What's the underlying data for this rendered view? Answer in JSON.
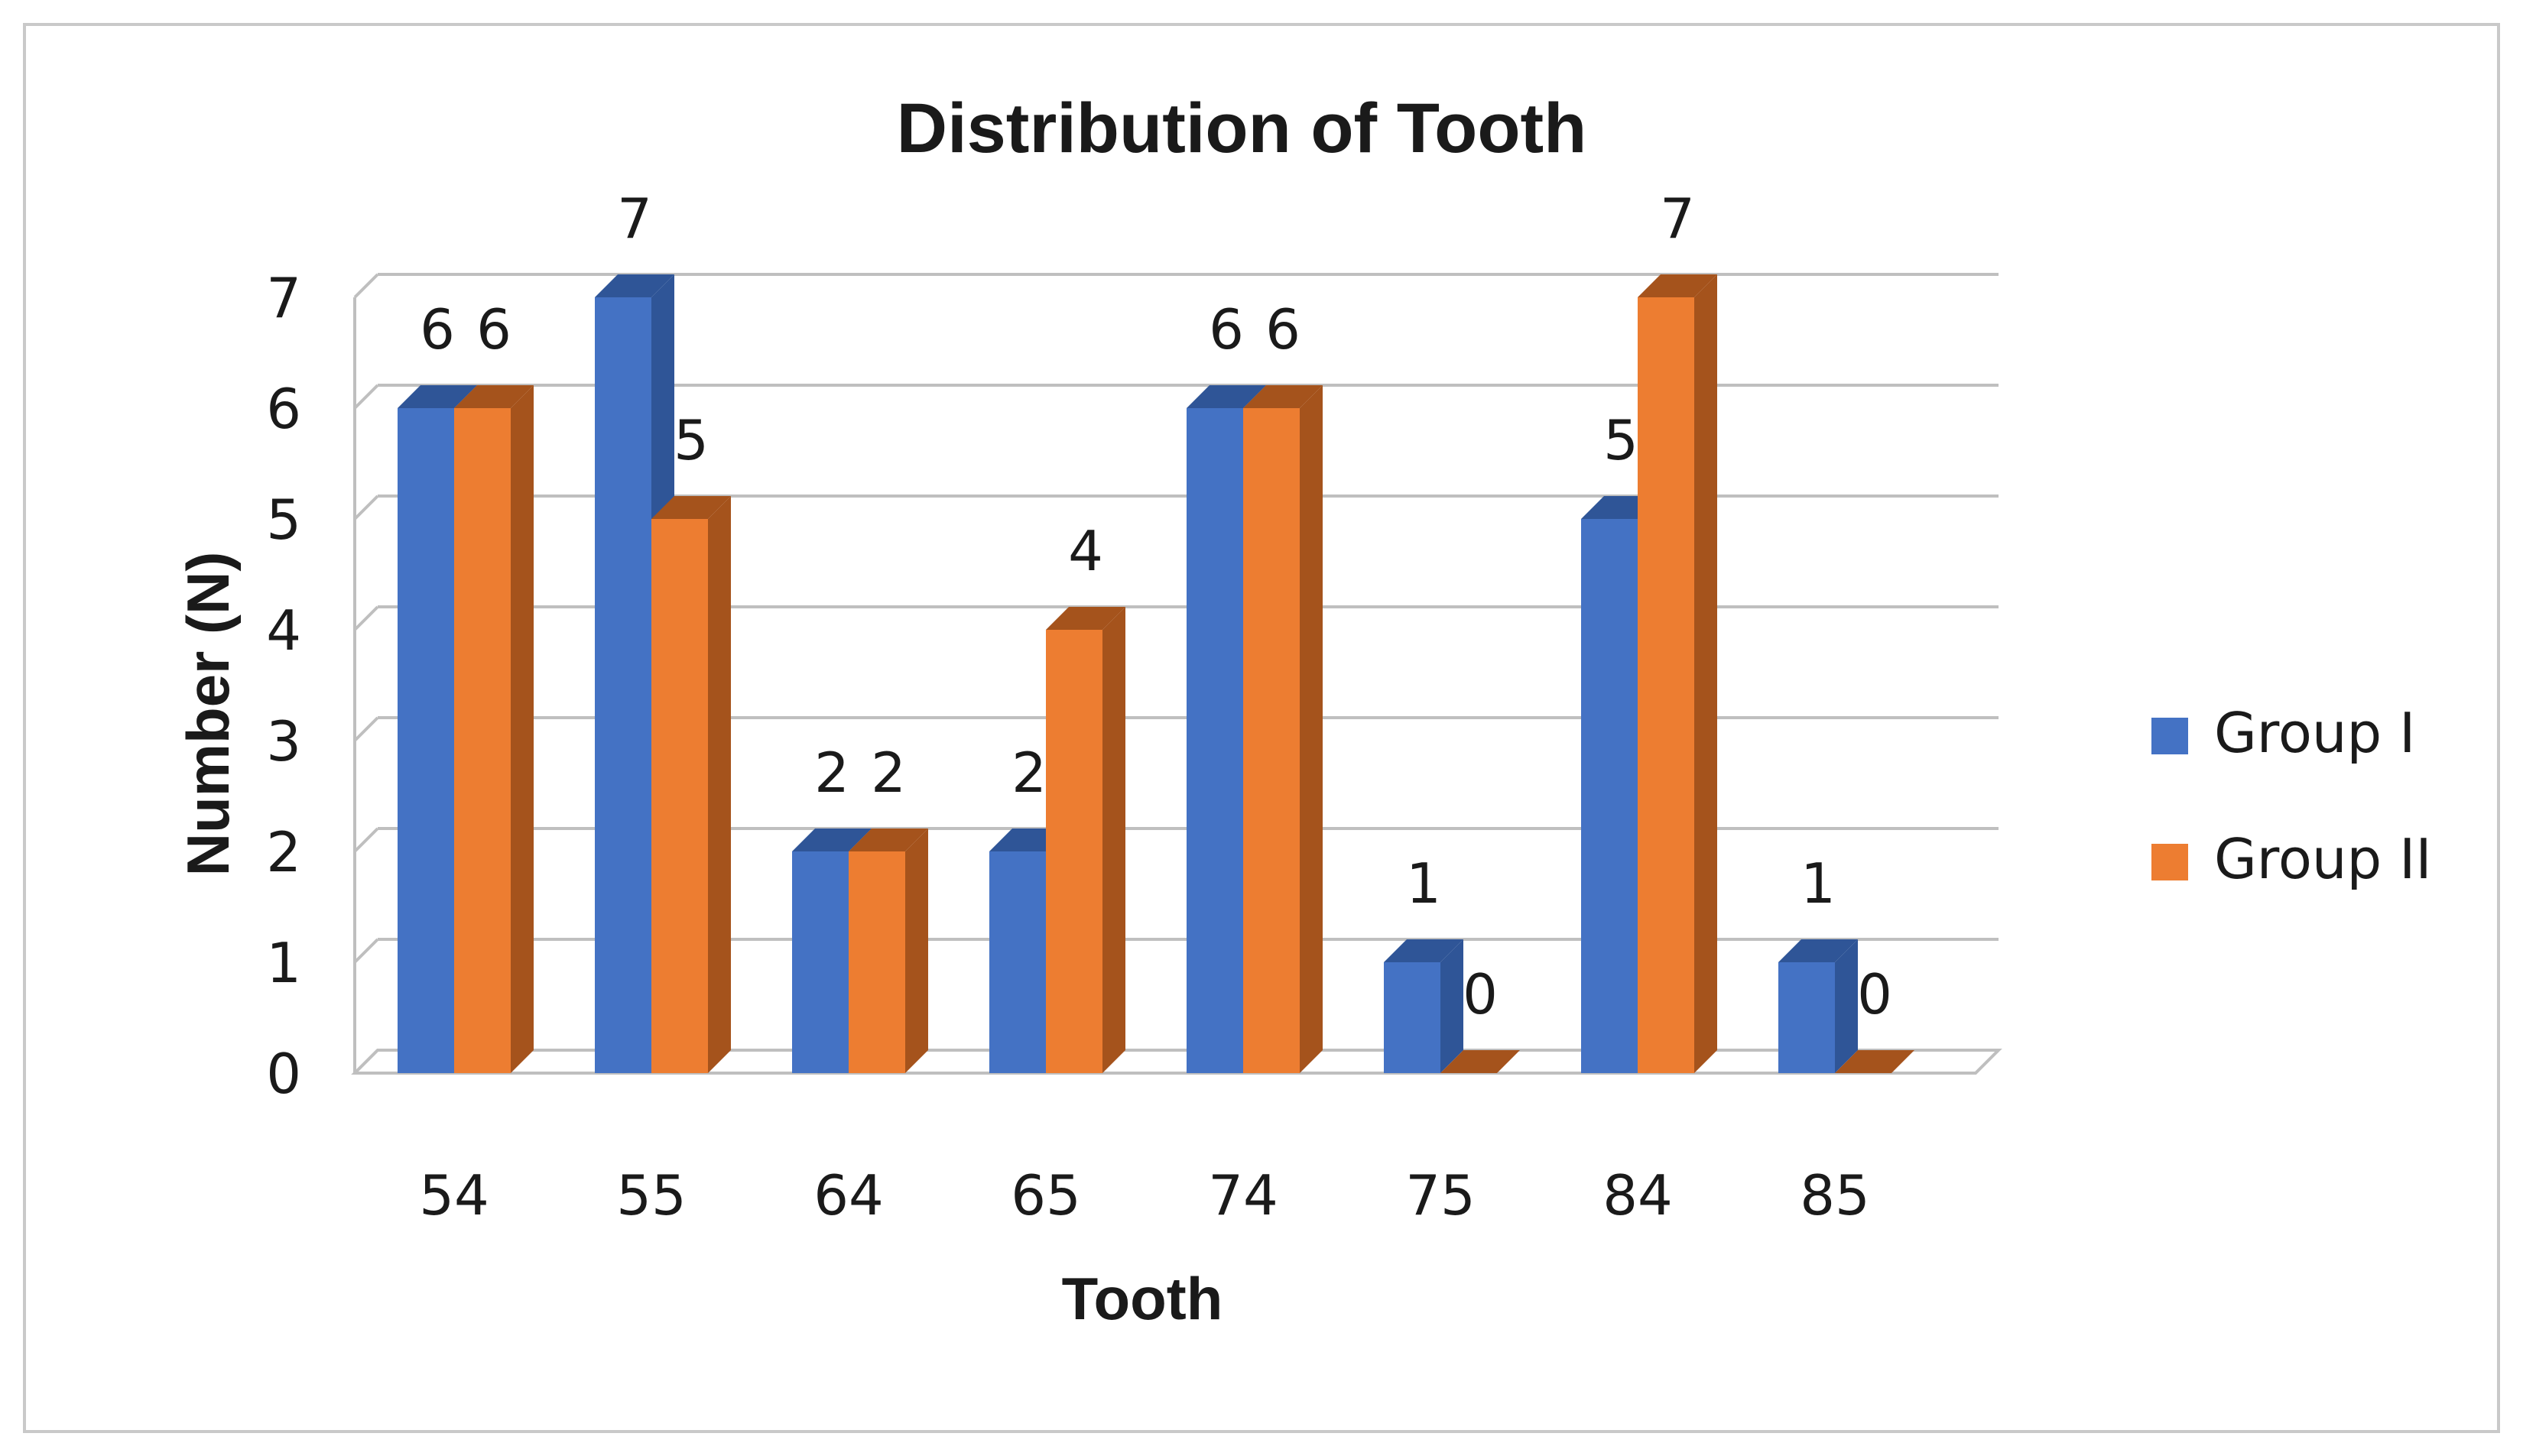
{
  "chart_data": {
    "type": "bar",
    "title": "Distribution of Tooth",
    "xlabel": "Tooth",
    "ylabel": "Number (N)",
    "categories": [
      "54",
      "55",
      "64",
      "65",
      "74",
      "75",
      "84",
      "85"
    ],
    "series": [
      {
        "name": "Group I",
        "values": [
          6,
          7,
          2,
          2,
          6,
          1,
          5,
          1
        ],
        "color": "#4472C4",
        "side_color": "#2F5597"
      },
      {
        "name": "Group II",
        "values": [
          6,
          5,
          2,
          4,
          6,
          0,
          7,
          0
        ],
        "color": "#ED7D31",
        "side_color": "#A5531C"
      }
    ],
    "ylim": [
      0,
      7
    ],
    "yticks": [
      "0",
      "1",
      "2",
      "3",
      "4",
      "5",
      "6",
      "7"
    ],
    "grid": true,
    "style": "3d-clustered-column",
    "data_labels": true,
    "legend_position": "right"
  }
}
